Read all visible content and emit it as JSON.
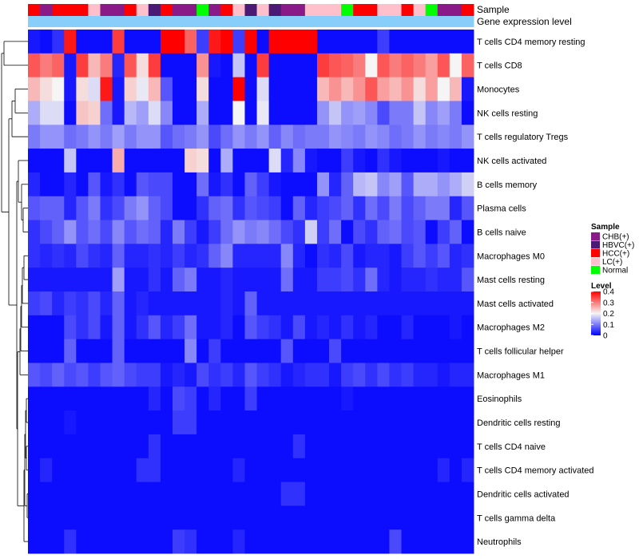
{
  "chart_data": {
    "type": "heatmap",
    "title": "",
    "annotation_rows": [
      "Sample",
      "Gene expression level"
    ],
    "rows": [
      "T cells CD4 memory resting",
      "T cells CD8",
      "Monocytes",
      "NK cells resting",
      "T cells regulatory  Tregs",
      "NK cells activated",
      "B cells memory",
      "Plasma cells",
      "B cells naive",
      "Macrophages M0",
      "Mast cells resting",
      "Mast cells activated",
      "Macrophages M2",
      "T cells follicular helper",
      "Macrophages M1",
      "Eosinophils",
      "Dendritic cells resting",
      "T cells CD4 naive",
      "T cells CD4 memory activated",
      "Dendritic cells activated",
      "T cells gamma delta",
      "Neutrophils"
    ],
    "n_columns": 37,
    "sample_groups": [
      "HCC(+)",
      "CHB(+)",
      "HCC(+)",
      "HCC(+)",
      "HCC(+)",
      "LC(+)",
      "CHB(+)",
      "CHB(+)",
      "HCC(+)",
      "LC(+)",
      "HBVC(+)",
      "HCC(+)",
      "CHB(+)",
      "CHB(+)",
      "Normal",
      "CHB(+)",
      "HCC(+)",
      "LC(+)",
      "HBVC(+)",
      "LC(+)",
      "HBVC(+)",
      "CHB(+)",
      "CHB(+)",
      "LC(+)",
      "LC(+)",
      "LC(+)",
      "Normal",
      "HCC(+)",
      "HCC(+)",
      "LC(+)",
      "LC(+)",
      "HCC(+)",
      "LC(+)",
      "Normal",
      "CHB(+)",
      "CHB(+)",
      "HCC(+)"
    ],
    "values": [
      [
        0.02,
        0.01,
        0.04,
        0.38,
        0.01,
        0.01,
        0.01,
        0.35,
        0.01,
        0.01,
        0.01,
        0.42,
        0.42,
        0.32,
        0.05,
        0.38,
        0.42,
        0.05,
        0.4,
        0.01,
        0.42,
        0.42,
        0.42,
        0.42,
        0.01,
        0.01,
        0.01,
        0.01,
        0.01,
        0.05,
        0.01,
        0.01,
        0.01,
        0.01,
        0.01,
        0.01,
        0.01
      ],
      [
        0.33,
        0.3,
        0.32,
        0.02,
        0.35,
        0.25,
        0.3,
        0.03,
        0.33,
        0.22,
        0.35,
        0.01,
        0.01,
        0.01,
        0.28,
        0.02,
        0.01,
        0.16,
        0.01,
        0.35,
        0.01,
        0.01,
        0.01,
        0.01,
        0.35,
        0.33,
        0.32,
        0.3,
        0.2,
        0.33,
        0.3,
        0.32,
        0.3,
        0.27,
        0.33,
        0.2,
        0.32
      ],
      [
        0.25,
        0.22,
        0.2,
        0.02,
        0.22,
        0.18,
        0.38,
        0.02,
        0.23,
        0.19,
        0.25,
        0.07,
        0.01,
        0.01,
        0.22,
        0.01,
        0.01,
        0.42,
        0.01,
        0.18,
        0.01,
        0.01,
        0.01,
        0.01,
        0.25,
        0.28,
        0.25,
        0.28,
        0.33,
        0.27,
        0.25,
        0.28,
        0.22,
        0.27,
        0.2,
        0.25,
        0.02
      ],
      [
        0.14,
        0.18,
        0.18,
        0.01,
        0.24,
        0.23,
        0.09,
        0.02,
        0.15,
        0.13,
        0.18,
        0.11,
        0.01,
        0.01,
        0.14,
        0.01,
        0.01,
        0.2,
        0.01,
        0.19,
        0.01,
        0.01,
        0.01,
        0.01,
        0.12,
        0.16,
        0.12,
        0.13,
        0.11,
        0.06,
        0.1,
        0.1,
        0.16,
        0.11,
        0.13,
        0.1,
        0.01
      ],
      [
        0.1,
        0.12,
        0.12,
        0.09,
        0.1,
        0.12,
        0.1,
        0.13,
        0.1,
        0.12,
        0.12,
        0.07,
        0.09,
        0.1,
        0.12,
        0.06,
        0.09,
        0.12,
        0.1,
        0.12,
        0.08,
        0.11,
        0.09,
        0.1,
        0.1,
        0.12,
        0.11,
        0.1,
        0.12,
        0.11,
        0.09,
        0.1,
        0.12,
        0.1,
        0.11,
        0.1,
        0.12
      ],
      [
        0.01,
        0.01,
        0.01,
        0.16,
        0.01,
        0.01,
        0.01,
        0.26,
        0.01,
        0.01,
        0.01,
        0.01,
        0.01,
        0.23,
        0.22,
        0.01,
        0.14,
        0.01,
        0.01,
        0.01,
        0.18,
        0.03,
        0.11,
        0.02,
        0.01,
        0.01,
        0.05,
        0.02,
        0.01,
        0.04,
        0.02,
        0.01,
        0.01,
        0.01,
        0.02,
        0.01,
        0.01
      ],
      [
        0.03,
        0.01,
        0.01,
        0.03,
        0.01,
        0.07,
        0.02,
        0.04,
        0.01,
        0.07,
        0.06,
        0.06,
        0.01,
        0.01,
        0.09,
        0.02,
        0.04,
        0.01,
        0.08,
        0.05,
        0.02,
        0.01,
        0.01,
        0.01,
        0.12,
        0.03,
        0.08,
        0.15,
        0.16,
        0.11,
        0.13,
        0.07,
        0.14,
        0.14,
        0.12,
        0.14,
        0.17
      ],
      [
        0.07,
        0.08,
        0.08,
        0.03,
        0.07,
        0.1,
        0.04,
        0.06,
        0.1,
        0.12,
        0.08,
        0.06,
        0.01,
        0.01,
        0.04,
        0.08,
        0.09,
        0.04,
        0.07,
        0.06,
        0.05,
        0.01,
        0.08,
        0.03,
        0.05,
        0.06,
        0.08,
        0.04,
        0.09,
        0.06,
        0.1,
        0.06,
        0.08,
        0.1,
        0.1,
        0.03,
        0.07
      ],
      [
        0.04,
        0.06,
        0.08,
        0.12,
        0.07,
        0.09,
        0.06,
        0.11,
        0.07,
        0.09,
        0.08,
        0.03,
        0.1,
        0.05,
        0.02,
        0.05,
        0.09,
        0.12,
        0.1,
        0.11,
        0.09,
        0.06,
        0.04,
        0.17,
        0.05,
        0.09,
        0.01,
        0.06,
        0.04,
        0.08,
        0.09,
        0.06,
        0.07,
        0.01,
        0.05,
        0.08,
        0.01
      ],
      [
        0.04,
        0.03,
        0.04,
        0.03,
        0.06,
        0.04,
        0.03,
        0.08,
        0.03,
        0.03,
        0.04,
        0.03,
        0.05,
        0.03,
        0.04,
        0.08,
        0.11,
        0.03,
        0.03,
        0.03,
        0.03,
        0.11,
        0.03,
        0.01,
        0.04,
        0.03,
        0.06,
        0.02,
        0.03,
        0.03,
        0.02,
        0.05,
        0.07,
        0.05,
        0.07,
        0.03,
        0.04
      ],
      [
        0.02,
        0.02,
        0.02,
        0.02,
        0.02,
        0.02,
        0.02,
        0.13,
        0.02,
        0.02,
        0.04,
        0.02,
        0.08,
        0.1,
        0.02,
        0.02,
        0.03,
        0.02,
        0.02,
        0.02,
        0.02,
        0.09,
        0.02,
        0.02,
        0.05,
        0.05,
        0.06,
        0.04,
        0.09,
        0.03,
        0.02,
        0.03,
        0.03,
        0.04,
        0.03,
        0.03,
        0.07
      ],
      [
        0.05,
        0.06,
        0.03,
        0.05,
        0.04,
        0.06,
        0.03,
        0.08,
        0.02,
        0.03,
        0.02,
        0.02,
        0.02,
        0.02,
        0.02,
        0.02,
        0.03,
        0.02,
        0.08,
        0.02,
        0.02,
        0.02,
        0.02,
        0.02,
        0.02,
        0.02,
        0.02,
        0.02,
        0.02,
        0.02,
        0.02,
        0.02,
        0.02,
        0.02,
        0.02,
        0.02,
        0.02
      ],
      [
        0.01,
        0.01,
        0.01,
        0.06,
        0.04,
        0.06,
        0.02,
        0.08,
        0.02,
        0.04,
        0.07,
        0.03,
        0.05,
        0.09,
        0.02,
        0.02,
        0.03,
        0.01,
        0.07,
        0.05,
        0.04,
        0.02,
        0.06,
        0.02,
        0.03,
        0.02,
        0.04,
        0.02,
        0.03,
        0.01,
        0.01,
        0.03,
        0.01,
        0.01,
        0.01,
        0.02,
        0.01
      ],
      [
        0.01,
        0.01,
        0.01,
        0.08,
        0.01,
        0.01,
        0.01,
        0.08,
        0.01,
        0.01,
        0.01,
        0.01,
        0.01,
        0.11,
        0.01,
        0.05,
        0.01,
        0.01,
        0.01,
        0.01,
        0.01,
        0.07,
        0.01,
        0.01,
        0.01,
        0.06,
        0.01,
        0.01,
        0.01,
        0.01,
        0.01,
        0.01,
        0.01,
        0.01,
        0.01,
        0.01,
        0.01
      ],
      [
        0.07,
        0.06,
        0.08,
        0.06,
        0.07,
        0.05,
        0.07,
        0.08,
        0.06,
        0.05,
        0.05,
        0.02,
        0.03,
        0.02,
        0.06,
        0.04,
        0.05,
        0.03,
        0.07,
        0.05,
        0.04,
        0.02,
        0.03,
        0.04,
        0.04,
        0.02,
        0.05,
        0.06,
        0.04,
        0.06,
        0.04,
        0.05,
        0.03,
        0.03,
        0.02,
        0.03,
        0.03
      ],
      [
        0.01,
        0.01,
        0.01,
        0.01,
        0.01,
        0.01,
        0.01,
        0.01,
        0.01,
        0.01,
        0.03,
        0.01,
        0.06,
        0.05,
        0.01,
        0.03,
        0.01,
        0.01,
        0.05,
        0.01,
        0.01,
        0.01,
        0.01,
        0.01,
        0.01,
        0.01,
        0.02,
        0.01,
        0.01,
        0.01,
        0.01,
        0.01,
        0.01,
        0.01,
        0.01,
        0.01,
        0.01
      ],
      [
        0.01,
        0.01,
        0.01,
        0.02,
        0.01,
        0.01,
        0.01,
        0.01,
        0.01,
        0.01,
        0.01,
        0.01,
        0.05,
        0.05,
        0.01,
        0.01,
        0.01,
        0.01,
        0.01,
        0.01,
        0.01,
        0.01,
        0.01,
        0.01,
        0.01,
        0.01,
        0.01,
        0.01,
        0.01,
        0.01,
        0.01,
        0.01,
        0.01,
        0.01,
        0.01,
        0.01,
        0.01
      ],
      [
        0.01,
        0.01,
        0.01,
        0.01,
        0.01,
        0.01,
        0.01,
        0.01,
        0.01,
        0.01,
        0.04,
        0.01,
        0.01,
        0.01,
        0.01,
        0.01,
        0.01,
        0.01,
        0.01,
        0.01,
        0.01,
        0.01,
        0.04,
        0.01,
        0.01,
        0.01,
        0.01,
        0.01,
        0.01,
        0.01,
        0.01,
        0.01,
        0.01,
        0.01,
        0.01,
        0.01,
        0.01
      ],
      [
        0.01,
        0.03,
        0.01,
        0.01,
        0.01,
        0.01,
        0.01,
        0.01,
        0.01,
        0.04,
        0.04,
        0.01,
        0.01,
        0.01,
        0.01,
        0.01,
        0.01,
        0.03,
        0.01,
        0.01,
        0.01,
        0.01,
        0.01,
        0.01,
        0.01,
        0.01,
        0.01,
        0.01,
        0.01,
        0.01,
        0.01,
        0.01,
        0.01,
        0.01,
        0.03,
        0.01,
        0.03
      ],
      [
        0.01,
        0.01,
        0.01,
        0.01,
        0.01,
        0.01,
        0.01,
        0.01,
        0.01,
        0.01,
        0.01,
        0.01,
        0.01,
        0.01,
        0.01,
        0.01,
        0.01,
        0.01,
        0.01,
        0.01,
        0.01,
        0.04,
        0.04,
        0.01,
        0.01,
        0.01,
        0.01,
        0.01,
        0.01,
        0.01,
        0.01,
        0.01,
        0.01,
        0.01,
        0.01,
        0.01,
        0.01
      ],
      [
        0.01,
        0.01,
        0.01,
        0.01,
        0.01,
        0.01,
        0.01,
        0.01,
        0.01,
        0.01,
        0.01,
        0.01,
        0.01,
        0.01,
        0.01,
        0.01,
        0.01,
        0.01,
        0.01,
        0.01,
        0.01,
        0.01,
        0.01,
        0.01,
        0.01,
        0.01,
        0.01,
        0.01,
        0.01,
        0.01,
        0.01,
        0.01,
        0.01,
        0.01,
        0.01,
        0.01,
        0.01
      ],
      [
        0.01,
        0.01,
        0.01,
        0.04,
        0.01,
        0.01,
        0.01,
        0.01,
        0.01,
        0.01,
        0.01,
        0.01,
        0.05,
        0.04,
        0.01,
        0.01,
        0.01,
        0.03,
        0.01,
        0.01,
        0.01,
        0.01,
        0.01,
        0.01,
        0.01,
        0.01,
        0.01,
        0.01,
        0.01,
        0.01,
        0.06,
        0.01,
        0.01,
        0.01,
        0.01,
        0.01,
        0.01
      ]
    ],
    "color_scale": {
      "min": 0,
      "mid": 0.2,
      "max": 0.4,
      "low_color": "#0000ff",
      "mid_color": "#f5f5f5",
      "high_color": "#ff0000"
    },
    "gene_expression_level_color": "#87cefa",
    "legend": {
      "sample_title": "Sample",
      "sample_items": [
        {
          "label": "CHB(+)",
          "color": "#8b1a89"
        },
        {
          "label": "HBVC(+)",
          "color": "#4b1a75"
        },
        {
          "label": "HCC(+)",
          "color": "#ff0000"
        },
        {
          "label": "LC(+)",
          "color": "#ffc0cb"
        },
        {
          "label": "Normal",
          "color": "#00ff00"
        }
      ],
      "level_title": "Level",
      "level_ticks": [
        "0.4",
        "0.3",
        "0.2",
        "0.1",
        "0"
      ],
      "level_tick_values": [
        0.4,
        0.3,
        0.2,
        0.1,
        0
      ],
      "placement": "right"
    }
  }
}
